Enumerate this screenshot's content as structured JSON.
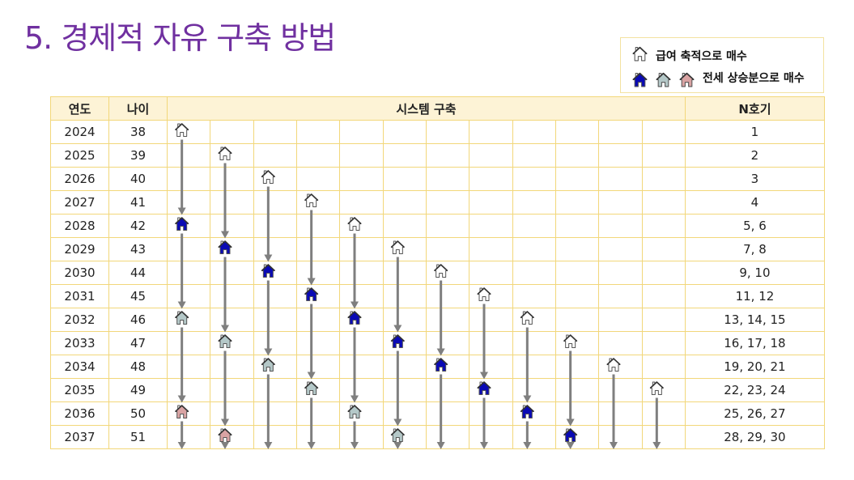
{
  "title": "5. 경제적 자유 구축 방법",
  "legend": {
    "salary_label": "급여 축적으로 매수",
    "jeonse_label": "전세 상승분으로 매수"
  },
  "icon_colors": {
    "salary": "#ffffff",
    "jeonse1": "#0a0ab4",
    "jeonse2": "#b4c8c8",
    "jeonse3": "#d9a3a3"
  },
  "table": {
    "headers": {
      "year": "연도",
      "age": "나이",
      "system": "시스템 구축",
      "n": "N호기"
    },
    "rows": [
      {
        "year": "2024",
        "age": "38",
        "n": "1"
      },
      {
        "year": "2025",
        "age": "39",
        "n": "2"
      },
      {
        "year": "2026",
        "age": "40",
        "n": "3"
      },
      {
        "year": "2027",
        "age": "41",
        "n": "4"
      },
      {
        "year": "2028",
        "age": "42",
        "n": "5, 6"
      },
      {
        "year": "2029",
        "age": "43",
        "n": "7, 8"
      },
      {
        "year": "2030",
        "age": "44",
        "n": "9, 10"
      },
      {
        "year": "2031",
        "age": "45",
        "n": "11, 12"
      },
      {
        "year": "2032",
        "age": "46",
        "n": "13, 14, 15"
      },
      {
        "year": "2033",
        "age": "47",
        "n": "16, 17, 18"
      },
      {
        "year": "2034",
        "age": "48",
        "n": "19, 20, 21"
      },
      {
        "year": "2035",
        "age": "49",
        "n": "22, 23, 24"
      },
      {
        "year": "2036",
        "age": "50",
        "n": "25, 26, 27"
      },
      {
        "year": "2037",
        "age": "51",
        "n": "28, 29, 30"
      }
    ],
    "system_columns": [
      [
        {
          "year": "2024",
          "type": "salary"
        },
        {
          "year": "2028",
          "type": "jeonse1"
        },
        {
          "year": "2032",
          "type": "jeonse2"
        },
        {
          "year": "2036",
          "type": "jeonse3"
        }
      ],
      [
        {
          "year": "2025",
          "type": "salary"
        },
        {
          "year": "2029",
          "type": "jeonse1"
        },
        {
          "year": "2033",
          "type": "jeonse2"
        },
        {
          "year": "2037",
          "type": "jeonse3"
        }
      ],
      [
        {
          "year": "2026",
          "type": "salary"
        },
        {
          "year": "2030",
          "type": "jeonse1"
        },
        {
          "year": "2034",
          "type": "jeonse2"
        }
      ],
      [
        {
          "year": "2027",
          "type": "salary"
        },
        {
          "year": "2031",
          "type": "jeonse1"
        },
        {
          "year": "2035",
          "type": "jeonse2"
        }
      ],
      [
        {
          "year": "2028",
          "type": "salary"
        },
        {
          "year": "2032",
          "type": "jeonse1"
        },
        {
          "year": "2036",
          "type": "jeonse2"
        }
      ],
      [
        {
          "year": "2029",
          "type": "salary"
        },
        {
          "year": "2033",
          "type": "jeonse1"
        },
        {
          "year": "2037",
          "type": "jeonse2"
        }
      ],
      [
        {
          "year": "2030",
          "type": "salary"
        },
        {
          "year": "2034",
          "type": "jeonse1"
        }
      ],
      [
        {
          "year": "2031",
          "type": "salary"
        },
        {
          "year": "2035",
          "type": "jeonse1"
        }
      ],
      [
        {
          "year": "2032",
          "type": "salary"
        },
        {
          "year": "2036",
          "type": "jeonse1"
        }
      ],
      [
        {
          "year": "2033",
          "type": "salary"
        },
        {
          "year": "2037",
          "type": "jeonse1"
        }
      ],
      [
        {
          "year": "2034",
          "type": "salary"
        }
      ],
      [
        {
          "year": "2035",
          "type": "salary"
        }
      ]
    ]
  }
}
